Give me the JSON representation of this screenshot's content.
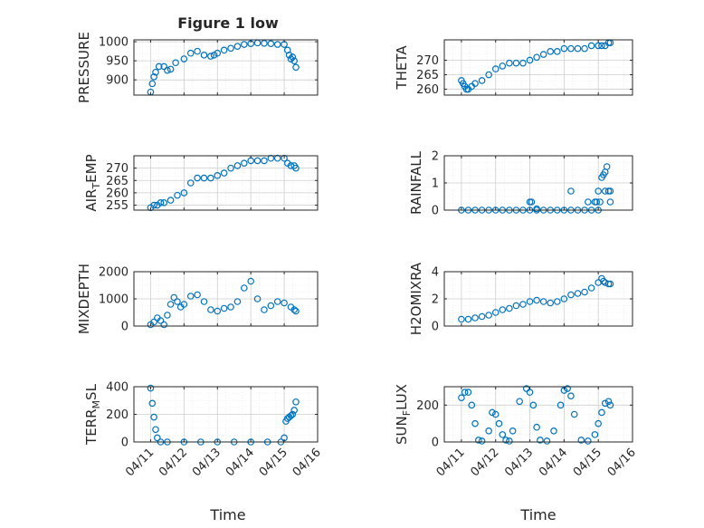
{
  "figure": {
    "title": "Figure 1 low",
    "xlabel": "Time"
  },
  "colors": {
    "marker": "#0072BD",
    "axis": "#262626",
    "grid": "#cfcfcf",
    "bg": "#ffffff"
  },
  "xticks": [
    "04/11",
    "04/12",
    "04/13",
    "04/14",
    "04/15",
    "04/16"
  ],
  "chart_data": [
    {
      "type": "scatter",
      "name": "pressure",
      "title": "Figure 1 low",
      "ylabel": {
        "base": "PRESSURE"
      },
      "xlabel": "",
      "ylim": [
        860,
        1005
      ],
      "yticks": [
        900,
        950,
        1000
      ],
      "grid": true,
      "x": [
        0.0,
        0.05,
        0.1,
        0.15,
        0.25,
        0.4,
        0.5,
        0.6,
        0.75,
        1.0,
        1.2,
        1.4,
        1.6,
        1.8,
        1.9,
        2.0,
        2.2,
        2.4,
        2.6,
        2.8,
        3.0,
        3.2,
        3.4,
        3.6,
        3.8,
        4.0,
        4.1,
        4.15,
        4.2,
        4.25,
        4.3,
        4.35
      ],
      "y": [
        868,
        890,
        908,
        920,
        935,
        935,
        925,
        928,
        945,
        955,
        970,
        975,
        965,
        962,
        965,
        970,
        978,
        983,
        988,
        993,
        995,
        997,
        996,
        995,
        993,
        993,
        978,
        965,
        955,
        960,
        950,
        933
      ]
    },
    {
      "type": "scatter",
      "name": "theta",
      "ylabel": {
        "base": "THETA"
      },
      "xlabel": "",
      "ylim": [
        258,
        277
      ],
      "yticks": [
        260,
        265,
        270
      ],
      "grid": true,
      "x": [
        0.0,
        0.05,
        0.1,
        0.15,
        0.2,
        0.3,
        0.4,
        0.6,
        0.8,
        1.0,
        1.2,
        1.4,
        1.6,
        1.8,
        2.0,
        2.2,
        2.4,
        2.6,
        2.8,
        3.0,
        3.2,
        3.4,
        3.6,
        3.8,
        4.0,
        4.1,
        4.2,
        4.3,
        4.35
      ],
      "y": [
        263,
        262,
        261,
        260,
        260,
        261,
        262,
        263,
        265,
        267,
        268,
        269,
        269,
        269,
        270,
        271,
        272,
        273,
        273,
        274,
        274,
        274,
        274,
        275,
        275,
        275,
        275,
        276,
        276
      ]
    },
    {
      "type": "scatter",
      "name": "air_temp",
      "ylabel": {
        "base": "AIR",
        "sub": "T",
        "rest": "EMP"
      },
      "xlabel": "",
      "ylim": [
        253,
        275
      ],
      "yticks": [
        255,
        260,
        265,
        270
      ],
      "grid": true,
      "x": [
        0.0,
        0.1,
        0.2,
        0.3,
        0.4,
        0.6,
        0.8,
        1.0,
        1.2,
        1.4,
        1.6,
        1.8,
        2.0,
        2.2,
        2.4,
        2.6,
        2.8,
        3.0,
        3.2,
        3.4,
        3.6,
        3.8,
        4.0,
        4.1,
        4.2,
        4.3,
        4.35
      ],
      "y": [
        254,
        255,
        255,
        256,
        256,
        257,
        259,
        260,
        264,
        266,
        266,
        266,
        267,
        268,
        270,
        271,
        272,
        273,
        273,
        273,
        274,
        274,
        274,
        272,
        271,
        271,
        270
      ]
    },
    {
      "type": "scatter",
      "name": "rainfall",
      "ylabel": {
        "base": "RAINFALL"
      },
      "xlabel": "",
      "ylim": [
        0,
        2
      ],
      "yticks": [
        0,
        1,
        2
      ],
      "grid": true,
      "x": [
        0.0,
        0.2,
        0.4,
        0.6,
        0.8,
        1.0,
        1.2,
        1.4,
        1.6,
        1.8,
        2.0,
        2.2,
        2.4,
        2.6,
        2.8,
        3.0,
        3.2,
        3.4,
        3.6,
        3.8,
        4.0,
        2.0,
        2.05,
        2.2,
        3.2,
        3.7,
        3.9,
        3.95,
        4.0,
        4.05,
        4.1,
        4.15,
        4.2,
        4.25,
        4.3,
        4.35,
        4.35,
        4.2
      ],
      "y": [
        0,
        0,
        0,
        0,
        0,
        0,
        0,
        0,
        0,
        0,
        0,
        0,
        0,
        0,
        0,
        0,
        0,
        0,
        0,
        0,
        0,
        0.3,
        0.3,
        0.05,
        0.7,
        0.3,
        0.3,
        0.3,
        0.7,
        0.3,
        1.2,
        1.3,
        1.4,
        1.6,
        0.7,
        0.7,
        0.3,
        0.7
      ]
    },
    {
      "type": "scatter",
      "name": "mixdepth",
      "ylabel": {
        "base": "MIXDEPTH"
      },
      "xlabel": "",
      "ylim": [
        0,
        2000
      ],
      "yticks": [
        0,
        1000,
        2000
      ],
      "grid": true,
      "x": [
        0.0,
        0.1,
        0.2,
        0.3,
        0.4,
        0.5,
        0.6,
        0.7,
        0.8,
        0.9,
        1.0,
        1.2,
        1.4,
        1.6,
        1.8,
        2.0,
        2.2,
        2.4,
        2.6,
        2.8,
        3.0,
        3.2,
        3.4,
        3.6,
        3.8,
        4.0,
        4.2,
        4.3,
        4.35
      ],
      "y": [
        50,
        150,
        300,
        200,
        50,
        400,
        800,
        1050,
        900,
        700,
        800,
        1100,
        1150,
        900,
        600,
        550,
        650,
        700,
        900,
        1400,
        1650,
        1000,
        600,
        750,
        900,
        850,
        700,
        600,
        550
      ]
    },
    {
      "type": "scatter",
      "name": "h2omixra",
      "ylabel": {
        "base": "H2OMIXRA"
      },
      "xlabel": "",
      "ylim": [
        0,
        4
      ],
      "yticks": [
        0,
        2,
        4
      ],
      "grid": true,
      "x": [
        0.0,
        0.2,
        0.4,
        0.6,
        0.8,
        1.0,
        1.2,
        1.4,
        1.6,
        1.8,
        2.0,
        2.2,
        2.4,
        2.6,
        2.8,
        3.0,
        3.2,
        3.4,
        3.6,
        3.8,
        4.0,
        4.1,
        4.15,
        4.2,
        4.3,
        4.35
      ],
      "y": [
        0.5,
        0.5,
        0.6,
        0.7,
        0.8,
        1.0,
        1.2,
        1.3,
        1.5,
        1.6,
        1.8,
        1.9,
        1.8,
        1.7,
        1.8,
        2.0,
        2.3,
        2.4,
        2.5,
        2.8,
        3.2,
        3.5,
        3.3,
        3.2,
        3.1,
        3.1
      ]
    },
    {
      "type": "scatter",
      "name": "terr_msl",
      "ylabel": {
        "base": "TERR",
        "sub": "M",
        "rest": "SL"
      },
      "xlabel": "",
      "ylim": [
        0,
        400
      ],
      "yticks": [
        0,
        200,
        400
      ],
      "grid": true,
      "x": [
        0.0,
        0.05,
        0.1,
        0.15,
        0.2,
        0.3,
        0.5,
        1.0,
        1.5,
        2.0,
        2.5,
        3.0,
        3.5,
        3.9,
        4.0,
        4.05,
        4.1,
        4.15,
        4.2,
        4.25,
        4.3,
        4.35
      ],
      "y": [
        390,
        280,
        180,
        90,
        30,
        0,
        0,
        0,
        0,
        0,
        0,
        0,
        0,
        0,
        30,
        150,
        170,
        180,
        190,
        200,
        230,
        290
      ]
    },
    {
      "type": "scatter",
      "name": "sun_flux",
      "ylabel": {
        "base": "SUN",
        "sub": "F",
        "rest": "LUX"
      },
      "xlabel": "",
      "ylim": [
        0,
        300
      ],
      "yticks": [
        0,
        200
      ],
      "grid": true,
      "x": [
        0.0,
        0.1,
        0.2,
        0.3,
        0.4,
        0.5,
        0.6,
        0.8,
        0.9,
        1.0,
        1.1,
        1.2,
        1.3,
        1.4,
        1.5,
        1.7,
        1.9,
        2.0,
        2.1,
        2.2,
        2.3,
        2.5,
        2.7,
        2.9,
        3.0,
        3.1,
        3.2,
        3.3,
        3.5,
        3.7,
        3.9,
        4.0,
        4.1,
        4.2,
        4.3,
        4.35
      ],
      "y": [
        240,
        270,
        270,
        200,
        100,
        10,
        5,
        60,
        160,
        150,
        100,
        40,
        10,
        5,
        60,
        220,
        290,
        270,
        200,
        80,
        10,
        5,
        60,
        200,
        280,
        290,
        250,
        150,
        10,
        5,
        40,
        100,
        160,
        210,
        220,
        200
      ]
    }
  ]
}
